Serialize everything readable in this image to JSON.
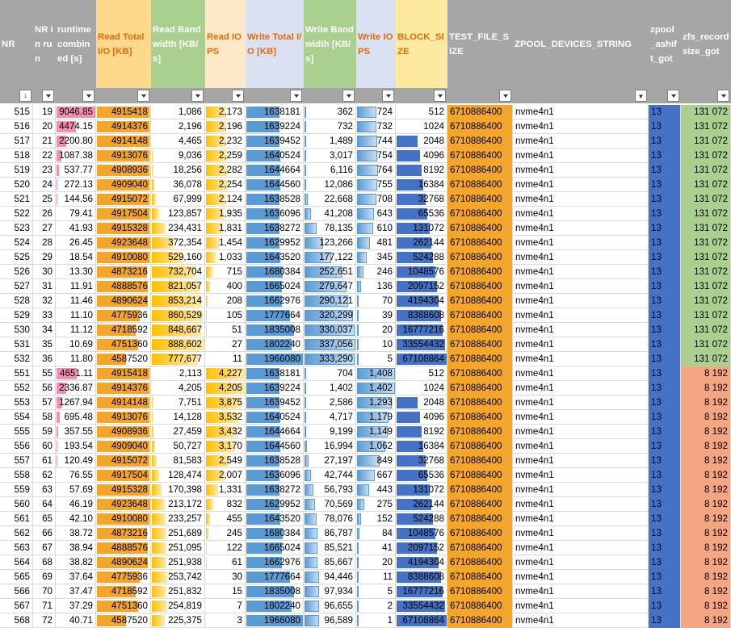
{
  "headers": [
    {
      "key": "nr",
      "label": "NR",
      "bg": "#a6a6a6",
      "color": "#ffffff"
    },
    {
      "key": "nrrun",
      "label": "NR in run",
      "bg": "#a6a6a6",
      "color": "#ffffff"
    },
    {
      "key": "runtime",
      "label": "runtime combined [s]",
      "bg": "#a6a6a6",
      "color": "#ffffff"
    },
    {
      "key": "readtot",
      "label": "Read Total I/O [KB]",
      "bg": "#fdd98c",
      "color": "#e36c09"
    },
    {
      "key": "readbw",
      "label": "Read Bandwidth [KB/s]",
      "bg": "#a9d08e",
      "color": "#ffffff"
    },
    {
      "key": "readiops",
      "label": "Read IOPS",
      "bg": "#fde9c8",
      "color": "#e36c09"
    },
    {
      "key": "writetot",
      "label": "Write Total I/O [KB]",
      "bg": "#d9e1f2",
      "color": "#e36c09"
    },
    {
      "key": "writebw",
      "label": "Write Bandwidth [KB/s]",
      "bg": "#a9d08e",
      "color": "#ffffff"
    },
    {
      "key": "writeiops",
      "label": "Write IOPS",
      "bg": "#d9e1f2",
      "color": "#e36c09"
    },
    {
      "key": "blocksize",
      "label": "BLOCK_SIZE",
      "bg": "#fde9a0",
      "color": "#e36c09"
    },
    {
      "key": "testfile",
      "label": "TEST_FILE_SIZE",
      "bg": "#a6a6a6",
      "color": "#ffffff"
    },
    {
      "key": "zpooldev",
      "label": "ZPOOL_DEVICES_STRING",
      "bg": "#a6a6a6",
      "color": "#ffffff"
    },
    {
      "key": "ashift",
      "label": "zpool_ashift_got",
      "bg": "#a6a6a6",
      "color": "#ffffff"
    },
    {
      "key": "recsize",
      "label": "zfs_recordsize_got",
      "bg": "#a6a6a6",
      "color": "#ffffff"
    }
  ],
  "colors": {
    "orange": "#ffc000",
    "orange_dark": "#f4a62a",
    "blue": "#4472c4",
    "blue_bar": "#5b9bd5",
    "pink": "#f48fb1",
    "green_cell": "#a9d08e",
    "red_cell": "#f4a582",
    "header_gray": "#a6a6a6"
  },
  "rows": [
    [
      "515",
      "19",
      "9046.85",
      "4915418",
      "1,086",
      "2,173",
      "1638181",
      "362",
      "724",
      "512",
      "6710886400",
      "nvme4n1",
      "13",
      "131 072"
    ],
    [
      "516",
      "20",
      "4474.15",
      "4914376",
      "2,196",
      "2,196",
      "1639224",
      "732",
      "732",
      "1024",
      "6710886400",
      "nvme4n1",
      "13",
      "131 072"
    ],
    [
      "517",
      "21",
      "2200.80",
      "4914148",
      "4,465",
      "2,232",
      "1639452",
      "1,489",
      "744",
      "2048",
      "6710886400",
      "nvme4n1",
      "13",
      "131 072"
    ],
    [
      "518",
      "22",
      "1087.38",
      "4913076",
      "9,036",
      "2,259",
      "1640524",
      "3,017",
      "754",
      "4096",
      "6710886400",
      "nvme4n1",
      "13",
      "131 072"
    ],
    [
      "519",
      "23",
      "537.77",
      "4908936",
      "18,256",
      "2,282",
      "1644664",
      "6,116",
      "764",
      "8192",
      "6710886400",
      "nvme4n1",
      "13",
      "131 072"
    ],
    [
      "520",
      "24",
      "272.13",
      "4909040",
      "36,078",
      "2,254",
      "1644560",
      "12,086",
      "755",
      "16384",
      "6710886400",
      "nvme4n1",
      "13",
      "131 072"
    ],
    [
      "521",
      "25",
      "144.56",
      "4915072",
      "67,999",
      "2,124",
      "1638528",
      "22,668",
      "708",
      "32768",
      "6710886400",
      "nvme4n1",
      "13",
      "131 072"
    ],
    [
      "522",
      "26",
      "79.41",
      "4917504",
      "123,857",
      "1,935",
      "1636096",
      "41,208",
      "643",
      "65536",
      "6710886400",
      "nvme4n1",
      "13",
      "131 072"
    ],
    [
      "523",
      "27",
      "41.93",
      "4915328",
      "234,431",
      "1,831",
      "1638272",
      "78,135",
      "610",
      "131072",
      "6710886400",
      "nvme4n1",
      "13",
      "131 072"
    ],
    [
      "524",
      "28",
      "26.45",
      "4923648",
      "372,354",
      "1,454",
      "1629952",
      "123,266",
      "481",
      "262144",
      "6710886400",
      "nvme4n1",
      "13",
      "131 072"
    ],
    [
      "525",
      "29",
      "18.54",
      "4910080",
      "529,160",
      "1,033",
      "1643520",
      "177,122",
      "345",
      "524288",
      "6710886400",
      "nvme4n1",
      "13",
      "131 072"
    ],
    [
      "526",
      "30",
      "13.30",
      "4873216",
      "732,704",
      "715",
      "1680384",
      "252,651",
      "246",
      "1048576",
      "6710886400",
      "nvme4n1",
      "13",
      "131 072"
    ],
    [
      "527",
      "31",
      "11.91",
      "4888576",
      "821,057",
      "400",
      "1665024",
      "279,647",
      "136",
      "2097152",
      "6710886400",
      "nvme4n1",
      "13",
      "131 072"
    ],
    [
      "528",
      "32",
      "11.46",
      "4890624",
      "853,214",
      "208",
      "1662976",
      "290,121",
      "70",
      "4194304",
      "6710886400",
      "nvme4n1",
      "13",
      "131 072"
    ],
    [
      "529",
      "33",
      "11.10",
      "4775936",
      "860,529",
      "105",
      "1777664",
      "320,299",
      "39",
      "8388608",
      "6710886400",
      "nvme4n1",
      "13",
      "131 072"
    ],
    [
      "530",
      "34",
      "11.12",
      "4718592",
      "848,667",
      "51",
      "1835008",
      "330,037",
      "20",
      "16777216",
      "6710886400",
      "nvme4n1",
      "13",
      "131 072"
    ],
    [
      "531",
      "35",
      "10.69",
      "4751360",
      "888,602",
      "27",
      "1802240",
      "337,056",
      "10",
      "33554432",
      "6710886400",
      "nvme4n1",
      "13",
      "131 072"
    ],
    [
      "532",
      "36",
      "11.80",
      "4587520",
      "777,677",
      "11",
      "1966080",
      "333,290",
      "5",
      "67108864",
      "6710886400",
      "nvme4n1",
      "13",
      "131 072"
    ],
    [
      "551",
      "55",
      "4651.11",
      "4915418",
      "2,113",
      "4,227",
      "1638181",
      "704",
      "1,408",
      "512",
      "6710886400",
      "nvme4n1",
      "13",
      "8 192"
    ],
    [
      "552",
      "56",
      "2336.87",
      "4914376",
      "4,205",
      "4,205",
      "1639224",
      "1,402",
      "1,402",
      "1024",
      "6710886400",
      "nvme4n1",
      "13",
      "8 192"
    ],
    [
      "553",
      "57",
      "1267.94",
      "4914148",
      "7,751",
      "3,875",
      "1639452",
      "2,586",
      "1,293",
      "2048",
      "6710886400",
      "nvme4n1",
      "13",
      "8 192"
    ],
    [
      "554",
      "58",
      "695.48",
      "4913076",
      "14,128",
      "3,532",
      "1640524",
      "4,717",
      "1,179",
      "4096",
      "6710886400",
      "nvme4n1",
      "13",
      "8 192"
    ],
    [
      "555",
      "59",
      "357.55",
      "4908936",
      "27,459",
      "3,432",
      "1644664",
      "9,199",
      "1,149",
      "8192",
      "6710886400",
      "nvme4n1",
      "13",
      "8 192"
    ],
    [
      "556",
      "60",
      "193.54",
      "4909040",
      "50,727",
      "3,170",
      "1644560",
      "16,994",
      "1,062",
      "16384",
      "6710886400",
      "nvme4n1",
      "13",
      "8 192"
    ],
    [
      "557",
      "61",
      "120.49",
      "4915072",
      "81,583",
      "2,549",
      "1638528",
      "27,197",
      "849",
      "32768",
      "6710886400",
      "nvme4n1",
      "13",
      "8 192"
    ],
    [
      "558",
      "62",
      "76.55",
      "4917504",
      "128,474",
      "2,007",
      "1636096",
      "42,744",
      "667",
      "65536",
      "6710886400",
      "nvme4n1",
      "13",
      "8 192"
    ],
    [
      "559",
      "63",
      "57.69",
      "4915328",
      "170,398",
      "1,331",
      "1638272",
      "56,793",
      "443",
      "131072",
      "6710886400",
      "nvme4n1",
      "13",
      "8 192"
    ],
    [
      "560",
      "64",
      "46.19",
      "4923648",
      "213,172",
      "832",
      "1629952",
      "70,569",
      "275",
      "262144",
      "6710886400",
      "nvme4n1",
      "13",
      "8 192"
    ],
    [
      "561",
      "65",
      "42.10",
      "4910080",
      "233,257",
      "455",
      "1643520",
      "78,076",
      "152",
      "524288",
      "6710886400",
      "nvme4n1",
      "13",
      "8 192"
    ],
    [
      "562",
      "66",
      "38.72",
      "4873216",
      "251,689",
      "245",
      "1680384",
      "86,787",
      "84",
      "1048576",
      "6710886400",
      "nvme4n1",
      "13",
      "8 192"
    ],
    [
      "563",
      "67",
      "38.94",
      "4888576",
      "251,095",
      "122",
      "1665024",
      "85,521",
      "41",
      "2097152",
      "6710886400",
      "nvme4n1",
      "13",
      "8 192"
    ],
    [
      "564",
      "68",
      "38.82",
      "4890624",
      "251,938",
      "61",
      "1662976",
      "85,667",
      "20",
      "4194304",
      "6710886400",
      "nvme4n1",
      "13",
      "8 192"
    ],
    [
      "565",
      "69",
      "37.64",
      "4775936",
      "253,742",
      "30",
      "1777664",
      "94,446",
      "11",
      "8388608",
      "6710886400",
      "nvme4n1",
      "13",
      "8 192"
    ],
    [
      "566",
      "70",
      "37.47",
      "4718592",
      "251,832",
      "15",
      "1835008",
      "97,934",
      "5",
      "16777216",
      "6710886400",
      "nvme4n1",
      "13",
      "8 192"
    ],
    [
      "567",
      "71",
      "37.29",
      "4751360",
      "254,819",
      "7",
      "1802240",
      "96,655",
      "2",
      "33554432",
      "6710886400",
      "nvme4n1",
      "13",
      "8 192"
    ],
    [
      "568",
      "72",
      "40.71",
      "4587520",
      "225,375",
      "3",
      "1966080",
      "96,589",
      "1",
      "67108864",
      "6710886400",
      "nvme4n1",
      "13",
      "8 192"
    ]
  ]
}
